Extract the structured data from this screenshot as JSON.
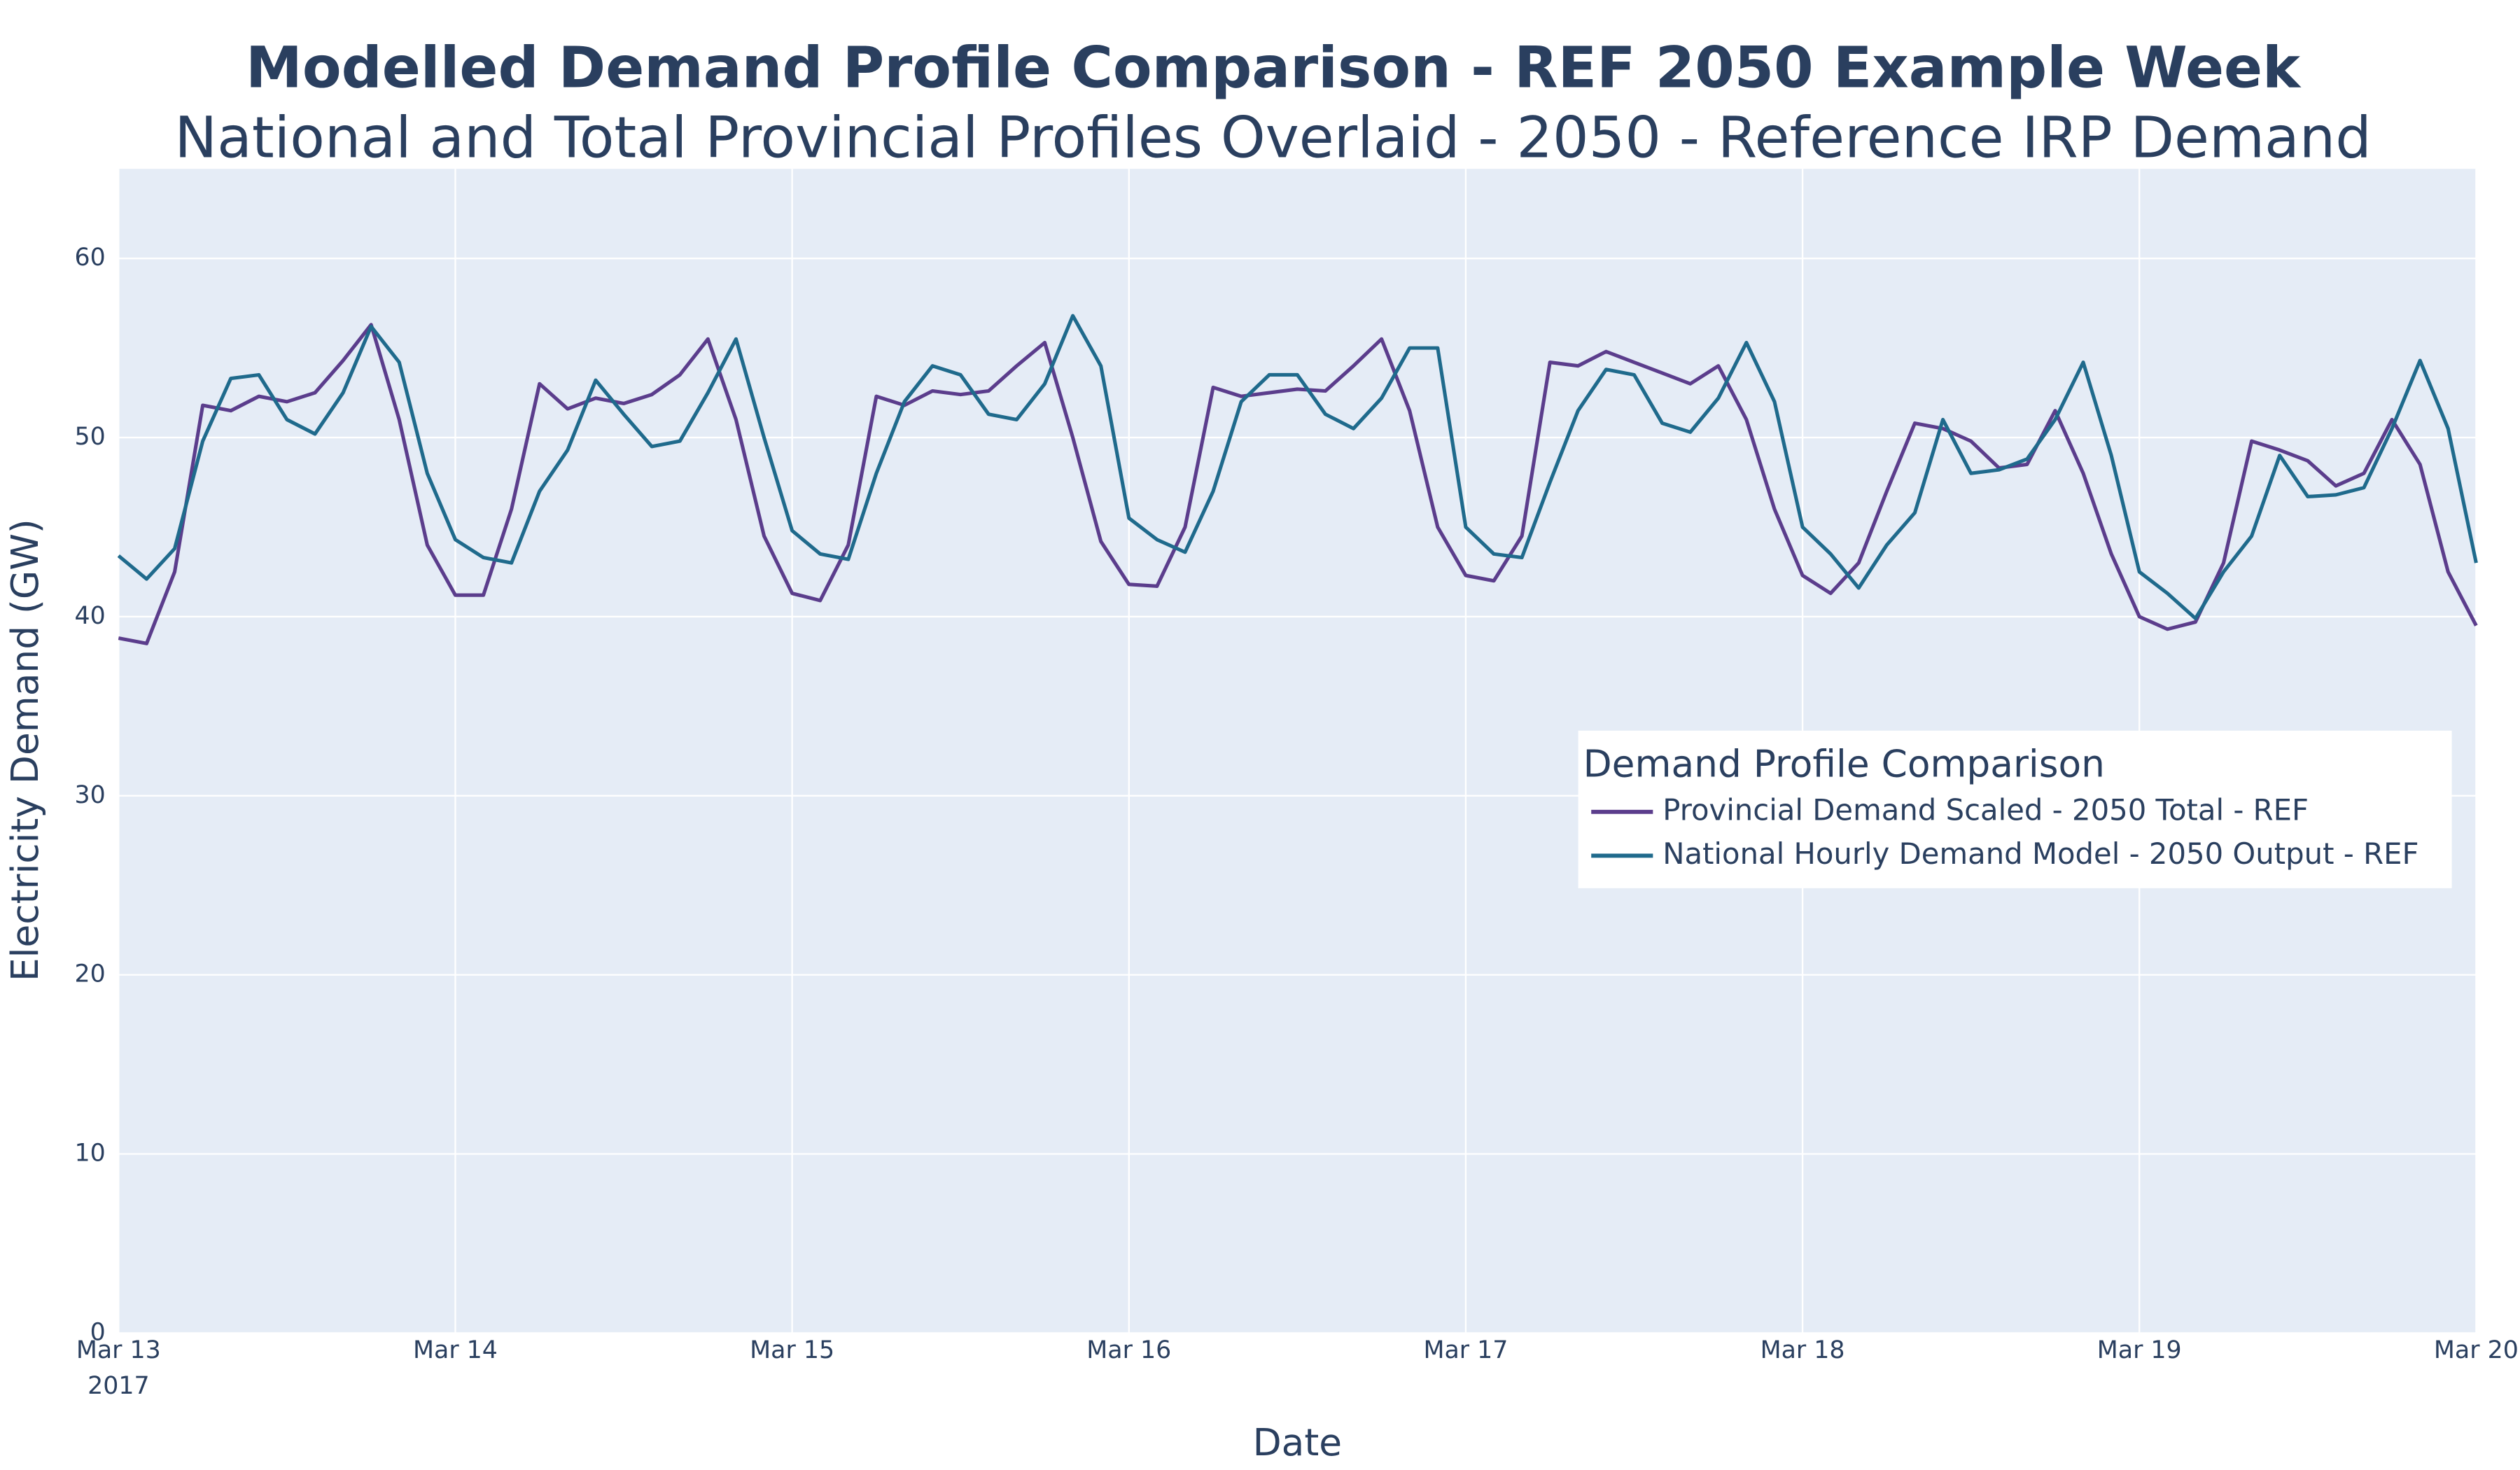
{
  "chart_data": {
    "type": "line",
    "title": "Modelled Demand Profile Comparison - REF 2050 Example Week",
    "subtitle": "National and Total Provincial Profiles Overlaid - 2050 - Reference IRP Demand",
    "x_label": "Date",
    "y_label": "Electricity Demand (GW)",
    "x_year_label": "2017",
    "legend_title": "Demand Profile Comparison",
    "legend_position": "right",
    "grid": true,
    "background": "#e5ecf6",
    "xlim": [
      "2017-03-13T00:00",
      "2017-03-20T00:00"
    ],
    "xticks": [
      {
        "value": "2017-03-13T00:00",
        "label": "Mar 13"
      },
      {
        "value": "2017-03-14T00:00",
        "label": "Mar 14"
      },
      {
        "value": "2017-03-15T00:00",
        "label": "Mar 15"
      },
      {
        "value": "2017-03-16T00:00",
        "label": "Mar 16"
      },
      {
        "value": "2017-03-17T00:00",
        "label": "Mar 17"
      },
      {
        "value": "2017-03-18T00:00",
        "label": "Mar 18"
      },
      {
        "value": "2017-03-19T00:00",
        "label": "Mar 19"
      },
      {
        "value": "2017-03-20T00:00",
        "label": "Mar 20"
      }
    ],
    "ylim": [
      0,
      65
    ],
    "yticks": [
      0,
      10,
      20,
      30,
      40,
      50,
      60
    ],
    "x": [
      "2017-03-13T00:00",
      "2017-03-13T02:00",
      "2017-03-13T04:00",
      "2017-03-13T06:00",
      "2017-03-13T08:00",
      "2017-03-13T10:00",
      "2017-03-13T12:00",
      "2017-03-13T14:00",
      "2017-03-13T16:00",
      "2017-03-13T18:00",
      "2017-03-13T20:00",
      "2017-03-13T22:00",
      "2017-03-14T00:00",
      "2017-03-14T02:00",
      "2017-03-14T04:00",
      "2017-03-14T06:00",
      "2017-03-14T08:00",
      "2017-03-14T10:00",
      "2017-03-14T12:00",
      "2017-03-14T14:00",
      "2017-03-14T16:00",
      "2017-03-14T18:00",
      "2017-03-14T20:00",
      "2017-03-14T22:00",
      "2017-03-15T00:00",
      "2017-03-15T02:00",
      "2017-03-15T04:00",
      "2017-03-15T06:00",
      "2017-03-15T08:00",
      "2017-03-15T10:00",
      "2017-03-15T12:00",
      "2017-03-15T14:00",
      "2017-03-15T16:00",
      "2017-03-15T18:00",
      "2017-03-15T20:00",
      "2017-03-15T22:00",
      "2017-03-16T00:00",
      "2017-03-16T02:00",
      "2017-03-16T04:00",
      "2017-03-16T06:00",
      "2017-03-16T08:00",
      "2017-03-16T10:00",
      "2017-03-16T12:00",
      "2017-03-16T14:00",
      "2017-03-16T16:00",
      "2017-03-16T18:00",
      "2017-03-16T20:00",
      "2017-03-16T22:00",
      "2017-03-17T00:00",
      "2017-03-17T02:00",
      "2017-03-17T04:00",
      "2017-03-17T06:00",
      "2017-03-17T08:00",
      "2017-03-17T10:00",
      "2017-03-17T12:00",
      "2017-03-17T14:00",
      "2017-03-17T16:00",
      "2017-03-17T18:00",
      "2017-03-17T20:00",
      "2017-03-17T22:00",
      "2017-03-18T00:00",
      "2017-03-18T02:00",
      "2017-03-18T04:00",
      "2017-03-18T06:00",
      "2017-03-18T08:00",
      "2017-03-18T10:00",
      "2017-03-18T12:00",
      "2017-03-18T14:00",
      "2017-03-18T16:00",
      "2017-03-18T18:00",
      "2017-03-18T20:00",
      "2017-03-18T22:00",
      "2017-03-19T00:00",
      "2017-03-19T02:00",
      "2017-03-19T04:00",
      "2017-03-19T06:00",
      "2017-03-19T08:00",
      "2017-03-19T10:00",
      "2017-03-19T12:00",
      "2017-03-19T14:00",
      "2017-03-19T16:00",
      "2017-03-19T18:00",
      "2017-03-19T20:00",
      "2017-03-19T22:00",
      "2017-03-20T00:00"
    ],
    "series": [
      {
        "name": "Provincial Demand Scaled - 2050 Total - REF",
        "color": "#5b3d8c",
        "values": [
          38.8,
          38.5,
          42.5,
          51.8,
          51.5,
          52.3,
          52.0,
          52.5,
          54.3,
          56.3,
          51.0,
          44.0,
          41.2,
          41.2,
          46.0,
          53.0,
          51.6,
          52.2,
          51.9,
          52.4,
          53.5,
          55.5,
          51.0,
          44.5,
          41.3,
          40.9,
          44.0,
          52.3,
          51.8,
          52.6,
          52.4,
          52.6,
          54.0,
          55.3,
          50.0,
          44.2,
          41.8,
          41.7,
          45.0,
          52.8,
          52.3,
          52.5,
          52.7,
          52.6,
          54.0,
          55.5,
          51.5,
          45.0,
          42.3,
          42.0,
          44.5,
          54.2,
          54.0,
          54.8,
          54.2,
          53.6,
          53.0,
          54.0,
          51.0,
          46.0,
          42.3,
          41.3,
          43.0,
          47.0,
          50.8,
          50.5,
          49.8,
          48.3,
          48.5,
          51.5,
          48.0,
          43.5,
          40.0,
          39.3,
          39.7,
          43.0,
          49.8,
          49.3,
          48.7,
          47.3,
          48.0,
          51.0,
          48.5,
          42.5,
          39.5
        ]
      },
      {
        "name": "National Hourly Demand Model - 2050 Output - REF",
        "color": "#1f6a8c",
        "values": [
          43.4,
          42.1,
          43.8,
          49.8,
          53.3,
          53.5,
          51.0,
          50.2,
          52.5,
          56.2,
          54.2,
          48.0,
          44.3,
          43.3,
          43.0,
          47.0,
          49.3,
          53.2,
          51.3,
          49.5,
          49.8,
          52.5,
          55.5,
          50.0,
          44.8,
          43.5,
          43.2,
          48.0,
          52.0,
          54.0,
          53.5,
          51.3,
          51.0,
          53.0,
          56.8,
          54.0,
          45.5,
          44.3,
          43.6,
          47.0,
          52.0,
          53.5,
          53.5,
          51.3,
          50.5,
          52.2,
          55.0,
          55.0,
          45.0,
          43.5,
          43.3,
          47.5,
          51.5,
          53.8,
          53.5,
          50.8,
          50.3,
          52.2,
          55.3,
          52.0,
          45.0,
          43.5,
          41.6,
          44.0,
          45.8,
          51.0,
          48.0,
          48.2,
          48.8,
          51.0,
          54.2,
          49.0,
          42.5,
          41.3,
          39.9,
          42.5,
          44.5,
          49.0,
          46.7,
          46.8,
          47.2,
          50.5,
          54.3,
          50.5,
          43.0
        ]
      }
    ]
  }
}
